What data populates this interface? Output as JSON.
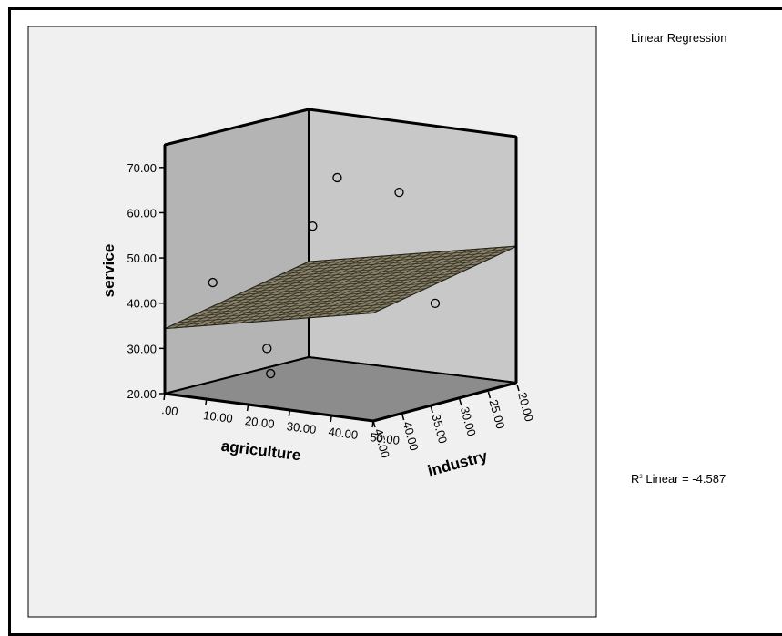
{
  "legend": {
    "title": "Linear Regression",
    "r2_label": "Linear = -4.587",
    "r2_prefix": "R",
    "r2_superscript": "2"
  },
  "colors": {
    "background": "#f0f0f0",
    "back_wall": "#b4b4b4",
    "floor": "#8c8c8c",
    "right_wall": "#c8c8c8",
    "plane": "#8a8068",
    "plane_grid": "#2a2a1e"
  },
  "chart_data": {
    "type": "scatter",
    "dimensions": 3,
    "xlabel": "agriculture",
    "ylabel": "service",
    "zlabel": "industry",
    "x_ticks": [
      ".00",
      "10.00",
      "20.00",
      "30.00",
      "40.00",
      "50.00"
    ],
    "y_ticks": [
      "20.00",
      "30.00",
      "40.00",
      "50.00",
      "60.00",
      "70.00"
    ],
    "z_ticks": [
      "20.00",
      "25.00",
      "30.00",
      "35.00",
      "40.00",
      "45.00"
    ],
    "xlim": [
      0,
      50
    ],
    "ylim": [
      20,
      75
    ],
    "zlim": [
      20,
      45
    ],
    "fit": "Linear Regression plane",
    "r2": -4.587,
    "points": [
      {
        "x": 6,
        "z": 41,
        "y": 44
      },
      {
        "x": 19,
        "z": 41,
        "y": 31
      },
      {
        "x": 24,
        "z": 44,
        "y": 27
      },
      {
        "x": 11,
        "z": 23,
        "y": 62
      },
      {
        "x": 12,
        "z": 28,
        "y": 53
      },
      {
        "x": 30,
        "z": 26,
        "y": 62
      },
      {
        "x": 40,
        "z": 27,
        "y": 39
      }
    ]
  }
}
